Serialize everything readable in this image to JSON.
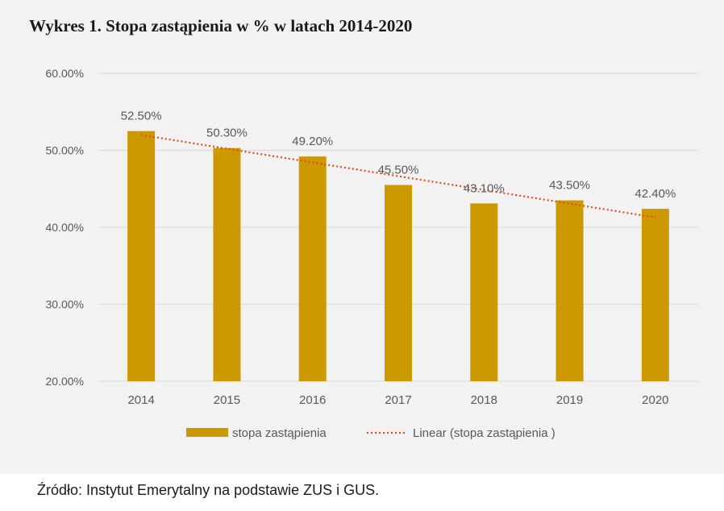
{
  "chart_data": {
    "type": "bar",
    "title": "Wykres 1. Stopa zastąpienia w % w latach 2014-2020",
    "categories": [
      "2014",
      "2015",
      "2016",
      "2017",
      "2018",
      "2019",
      "2020"
    ],
    "series": [
      {
        "name": "stopa zastąpienia",
        "values": [
          52.5,
          50.3,
          49.2,
          45.5,
          43.1,
          43.5,
          42.4
        ],
        "labels": [
          "52.50%",
          "50.30%",
          "49.20%",
          "45.50%",
          "43.10%",
          "43.50%",
          "42.40%"
        ],
        "color": "#cc9900"
      }
    ],
    "trendline": {
      "name": "Linear (stopa zastąpienia )",
      "type": "linear",
      "color": "#e04a20",
      "style": "dotted"
    },
    "ylim": [
      20,
      60
    ],
    "yticks": [
      20,
      30,
      40,
      50,
      60
    ],
    "ytick_labels": [
      "20.00%",
      "30.00%",
      "40.00%",
      "50.00%",
      "60.00%"
    ],
    "grid": true,
    "legend": "bottom",
    "xlabel": "",
    "ylabel": ""
  },
  "source": "Źródło: Instytut Emerytalny na podstawie ZUS i GUS.",
  "colors": {
    "panel_bg": "#f2f2f2",
    "grid": "#d9d9d9",
    "text": "#595959"
  }
}
